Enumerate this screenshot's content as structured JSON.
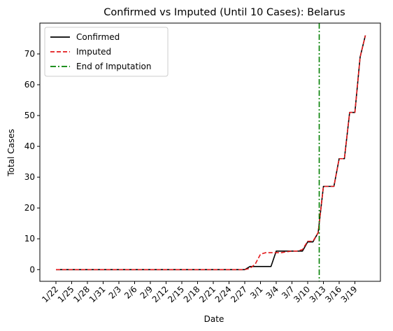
{
  "chart_data": {
    "type": "line",
    "title": "Confirmed vs Imputed (Until 10 Cases): Belarus",
    "xlabel": "Date",
    "ylabel": "Total Cases",
    "x_tick_labels": [
      "1/22",
      "1/25",
      "1/28",
      "1/31",
      "2/3",
      "2/6",
      "2/9",
      "2/12",
      "2/15",
      "2/18",
      "2/21",
      "2/24",
      "2/27",
      "3/1",
      "3/4",
      "3/7",
      "3/10",
      "3/13",
      "3/16",
      "3/19"
    ],
    "y_ticks": [
      0,
      10,
      20,
      30,
      40,
      50,
      60,
      70
    ],
    "ylim": [
      -3.8,
      80
    ],
    "x_dates": [
      "1/22",
      "1/23",
      "1/24",
      "1/25",
      "1/26",
      "1/27",
      "1/28",
      "1/29",
      "1/30",
      "1/31",
      "2/1",
      "2/2",
      "2/3",
      "2/4",
      "2/5",
      "2/6",
      "2/7",
      "2/8",
      "2/9",
      "2/10",
      "2/11",
      "2/12",
      "2/13",
      "2/14",
      "2/15",
      "2/16",
      "2/17",
      "2/18",
      "2/19",
      "2/20",
      "2/21",
      "2/22",
      "2/23",
      "2/24",
      "2/25",
      "2/26",
      "2/27",
      "2/28",
      "2/29",
      "3/1",
      "3/2",
      "3/3",
      "3/4",
      "3/5",
      "3/6",
      "3/7",
      "3/8",
      "3/9",
      "3/10",
      "3/11",
      "3/12",
      "3/13",
      "3/14",
      "3/15",
      "3/16",
      "3/17",
      "3/18",
      "3/19",
      "3/20",
      "3/21"
    ],
    "series": [
      {
        "name": "Confirmed",
        "color": "#000000",
        "style": "solid",
        "values": [
          0,
          0,
          0,
          0,
          0,
          0,
          0,
          0,
          0,
          0,
          0,
          0,
          0,
          0,
          0,
          0,
          0,
          0,
          0,
          0,
          0,
          0,
          0,
          0,
          0,
          0,
          0,
          0,
          0,
          0,
          0,
          0,
          0,
          0,
          0,
          0,
          0,
          1,
          1,
          1,
          1,
          1,
          6,
          6,
          6,
          6,
          6,
          6,
          9,
          9,
          12,
          27,
          27,
          27,
          36,
          36,
          51,
          51,
          69,
          76
        ]
      },
      {
        "name": "Imputed",
        "color": "#e31a1c",
        "style": "dashed",
        "values": [
          0,
          0,
          0,
          0,
          0,
          0,
          0,
          0,
          0,
          0,
          0,
          0,
          0,
          0,
          0,
          0,
          0,
          0,
          0,
          0,
          0,
          0,
          0,
          0,
          0,
          0,
          0,
          0,
          0,
          0,
          0,
          0,
          0,
          0,
          0,
          0,
          0,
          0.4,
          1.8,
          5,
          5.5,
          5.5,
          5.5,
          5.5,
          5.8,
          6,
          6,
          6.5,
          9.2,
          9.2,
          12,
          27,
          27,
          27,
          36,
          36,
          51,
          51,
          69,
          76
        ]
      }
    ],
    "vline": {
      "name": "End of Imputation",
      "color": "#008000",
      "style": "dashdot",
      "x_index": 50.2
    },
    "legend_placement": "top-left",
    "grid": false
  }
}
